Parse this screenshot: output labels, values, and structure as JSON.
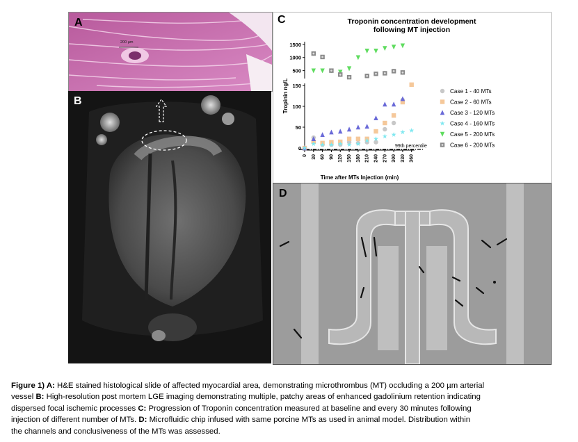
{
  "panels": {
    "a": {
      "letter": "A",
      "scale_label": "200 µm"
    },
    "b": {
      "letter": "B"
    },
    "c": {
      "letter": "C"
    },
    "d": {
      "letter": "D"
    }
  },
  "chart_data": {
    "type": "scatter",
    "title": "Troponin concentration development following MT injection",
    "title_lines": [
      "Troponin concentration development",
      "following MT injection"
    ],
    "xlabel": "Time after MTs Injection (min)",
    "ylabel": "Tropinin ng/L",
    "x_ticks": [
      "0",
      "30",
      "60",
      "90",
      "120",
      "150",
      "180",
      "210",
      "240",
      "270",
      "300",
      "330",
      "360"
    ],
    "y_ticks_lower": [
      "0",
      "50",
      "100",
      "150"
    ],
    "y_ticks_upper": [
      "500",
      "1000",
      "1500"
    ],
    "ylim_lower": [
      0,
      155
    ],
    "ylim_upper": [
      200,
      1600
    ],
    "xlim": [
      0,
      370
    ],
    "reference_line": {
      "label": "99th percentile",
      "y": 0
    },
    "legend_position": "right",
    "series": [
      {
        "name": "Case 1 - 40 MTs",
        "color": "#c8c8c8",
        "marker": "circle",
        "x": [
          0,
          30,
          60,
          90,
          120,
          150,
          180,
          210,
          240,
          270,
          300,
          330
        ],
        "y": [
          0,
          25,
          8,
          8,
          8,
          14,
          12,
          14,
          14,
          45,
          60,
          115
        ]
      },
      {
        "name": "Case 2 - 60 MTs",
        "color": "#f5c89a",
        "marker": "square",
        "x": [
          0,
          30,
          60,
          90,
          120,
          150,
          180,
          210,
          240,
          270,
          300,
          330,
          360
        ],
        "y": [
          0,
          15,
          12,
          14,
          15,
          22,
          22,
          22,
          40,
          60,
          78,
          110,
          152
        ]
      },
      {
        "name": "Case 3 - 120 MTs",
        "color": "#6a6ad8",
        "marker": "triangle-up",
        "x": [
          0,
          30,
          60,
          90,
          120,
          150,
          180,
          210,
          240,
          270,
          300,
          330
        ],
        "y": [
          0,
          22,
          32,
          38,
          40,
          45,
          50,
          52,
          72,
          105,
          105,
          118
        ]
      },
      {
        "name": "Case 4 - 160 MTs",
        "color": "#7fe8f0",
        "marker": "star",
        "x": [
          0,
          30,
          60,
          90,
          120,
          150,
          180,
          210,
          240,
          270,
          300,
          330,
          360
        ],
        "y": [
          0,
          10,
          8,
          8,
          10,
          8,
          10,
          18,
          22,
          28,
          32,
          38,
          42
        ]
      },
      {
        "name": "Case 5 - 200 MTs",
        "color": "#5fdc5f",
        "marker": "triangle-down",
        "x": [
          30,
          60,
          90,
          120,
          150,
          180,
          210,
          240,
          270,
          300,
          330
        ],
        "y": [
          500,
          500,
          500,
          450,
          580,
          1000,
          1250,
          1250,
          1350,
          1400,
          1450
        ]
      },
      {
        "name": "Case 6 - 200 MTs",
        "color": "#8a8a8a",
        "marker": "square-dot",
        "x": [
          30,
          60,
          90,
          120,
          150,
          210,
          240,
          270,
          300,
          330
        ],
        "y": [
          1150,
          1020,
          500,
          350,
          250,
          300,
          380,
          400,
          480,
          430
        ]
      }
    ]
  },
  "caption": {
    "line1_bold": "Figure 1) A:",
    "line1_text": " H&E stained histological slide of affected myocardial area, demonstrating microthrombus (MT) occluding a 200 µm arterial",
    "line2_text": "vessel ",
    "line2_bold": "B:",
    "line2_text2": " High-resolution post mortem LGE imaging demonstrating multiple, patchy areas of enhanced gadolinium retention indicating",
    "line3_text": "dispersed focal ischemic processes ",
    "line3_bold": "C:",
    "line3_text2": " Progression of Troponin concentration measured at baseline and every 30 minutes following",
    "line4_text": "injection of different number of MTs. ",
    "line4_bold": "D:",
    "line4_text2": " Microfluidic chip infused with same porcine MTs as used in animal model. Distribution within",
    "line5_text": "the channels and conclusiveness of the MTs was assessed."
  }
}
